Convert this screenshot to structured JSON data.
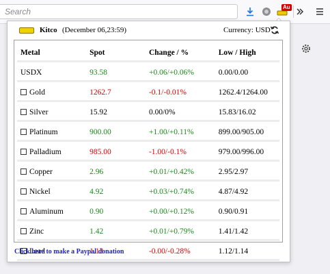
{
  "toolbar": {
    "search_placeholder": "Search",
    "badge": "Au"
  },
  "popup": {
    "brand": "Kitco",
    "date": "(December 06,23:59)",
    "currency": "Currency: USD",
    "columns": [
      "Metal",
      "Spot",
      "Change / %",
      "Low / High"
    ],
    "rows": [
      {
        "metal": "USDX",
        "checkbox": false,
        "spot": "93.58",
        "change": "+0.06/+0.06%",
        "lowhigh": "0.00/0.00",
        "spot_dir": "up",
        "change_dir": "up"
      },
      {
        "metal": "Gold",
        "checkbox": true,
        "spot": "1262.7",
        "change": "-0.1/-0.01%",
        "lowhigh": "1262.4/1264.00",
        "spot_dir": "down",
        "change_dir": "down"
      },
      {
        "metal": "Silver",
        "checkbox": true,
        "spot": "15.92",
        "change": "0.00/0%",
        "lowhigh": "15.83/16.02",
        "spot_dir": "none",
        "change_dir": "none"
      },
      {
        "metal": "Platinum",
        "checkbox": true,
        "spot": "900.00",
        "change": "+1.00/+0.11%",
        "lowhigh": "899.00/905.00",
        "spot_dir": "up",
        "change_dir": "up"
      },
      {
        "metal": "Palladium",
        "checkbox": true,
        "spot": "985.00",
        "change": "-1.00/-0.1%",
        "lowhigh": "979.00/996.00",
        "spot_dir": "down",
        "change_dir": "down"
      },
      {
        "metal": "Copper",
        "checkbox": true,
        "spot": "2.96",
        "change": "+0.01/+0.42%",
        "lowhigh": "2.95/2.97",
        "spot_dir": "up",
        "change_dir": "up"
      },
      {
        "metal": "Nickel",
        "checkbox": true,
        "spot": "4.92",
        "change": "+0.03/+0.74%",
        "lowhigh": "4.87/4.92",
        "spot_dir": "up",
        "change_dir": "up"
      },
      {
        "metal": "Aluminum",
        "checkbox": true,
        "spot": "0.90",
        "change": "+0.00/+0.12%",
        "lowhigh": "0.90/0.91",
        "spot_dir": "up",
        "change_dir": "up"
      },
      {
        "metal": "Zinc",
        "checkbox": true,
        "spot": "1.42",
        "change": "+0.01/+0.79%",
        "lowhigh": "1.41/1.42",
        "spot_dir": "up",
        "change_dir": "up"
      },
      {
        "metal": "Lead",
        "checkbox": true,
        "spot": "1.13",
        "change": "-0.00/-0.28%",
        "lowhigh": "1.12/1.14",
        "spot_dir": "down",
        "change_dir": "down"
      }
    ],
    "donate_link": "Click here to make a Paypal donation"
  },
  "colors": {
    "up": "#1a8a1a",
    "down": "#e00000",
    "link": "#1f1fd0",
    "gold": "#f0d200"
  }
}
